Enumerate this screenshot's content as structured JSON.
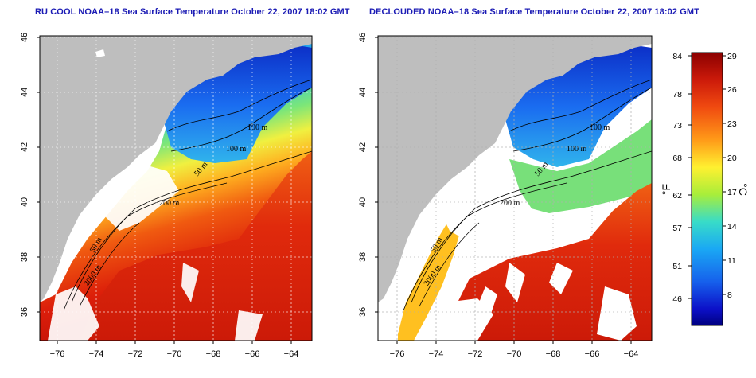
{
  "panels": [
    {
      "title": "RU COOL NOAA–18 Sea Surface Temperature October 22, 2007 18:02 GMT",
      "contour_labels": [
        "100 m",
        "100 m",
        "50 m",
        "200 m",
        "50 m",
        "2000 m"
      ]
    },
    {
      "title": "DECLOUDED NOAA–18 Sea Surface Temperature October 22, 2007 18:02 GMT",
      "contour_labels": [
        "100 m",
        "100 m",
        "50 m",
        "200 m",
        "50 m",
        "2000 m"
      ]
    }
  ],
  "axes": {
    "x_ticks": [
      "−76",
      "−74",
      "−72",
      "−70",
      "−68",
      "−66",
      "−64"
    ],
    "y_ticks": [
      "46",
      "44",
      "42",
      "40",
      "38",
      "36"
    ]
  },
  "colorbar": {
    "fahrenheit_ticks": [
      "84",
      "78",
      "73",
      "68",
      "62",
      "57",
      "51",
      "46"
    ],
    "celsius_ticks": [
      "29",
      "26",
      "23",
      "20",
      "17",
      "14",
      "11",
      "8"
    ],
    "fahrenheit_unit": "°F",
    "celsius_unit": "°C",
    "colors": [
      "#8b0000",
      "#cc1a0a",
      "#f04a10",
      "#ff9a18",
      "#fff030",
      "#a8ee3a",
      "#38dcc8",
      "#1aa8f4",
      "#1660ec",
      "#0c10c8",
      "#000080"
    ]
  },
  "legend_colors": {
    "land": "#bebebe",
    "cloud": "#ffffff",
    "contour": "#000000"
  }
}
